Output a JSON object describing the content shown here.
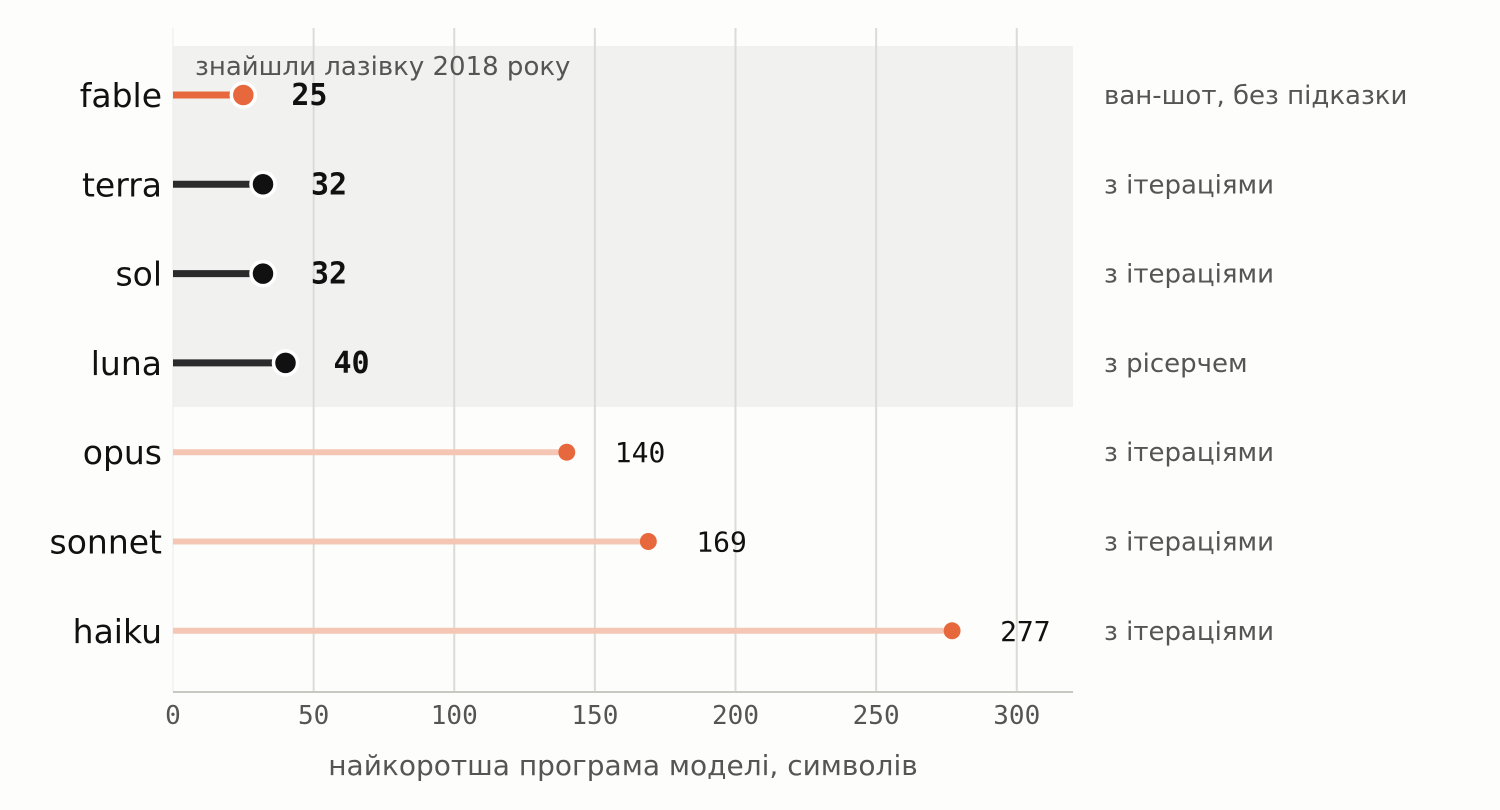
{
  "chart_data": {
    "type": "lollipop",
    "orientation": "horizontal",
    "xlabel": "найкоротша програма моделі, символів",
    "xlim": [
      0,
      320
    ],
    "xticks": [
      0,
      50,
      100,
      150,
      200,
      250,
      300
    ],
    "grid": "vertical",
    "highlight_band": {
      "label": "знайшли лазівку 2018 року",
      "categories": [
        "fable",
        "terra",
        "sol",
        "luna"
      ]
    },
    "categories": [
      "fable",
      "terra",
      "sol",
      "luna",
      "opus",
      "sonnet",
      "haiku"
    ],
    "values": [
      25,
      32,
      32,
      40,
      140,
      169,
      277
    ],
    "notes": [
      "ван-шот, без підказки",
      "з ітераціями",
      "з ітераціями",
      "з рісерчем",
      "з ітераціями",
      "з ітераціями",
      "з ітераціями"
    ],
    "colors": {
      "fable": "#e8683d",
      "loophole": "#111111",
      "others": "#e8683d",
      "others_stem": "#f5c6b4",
      "band": "#f1f1f0",
      "grid": "#dcdcd6"
    }
  }
}
